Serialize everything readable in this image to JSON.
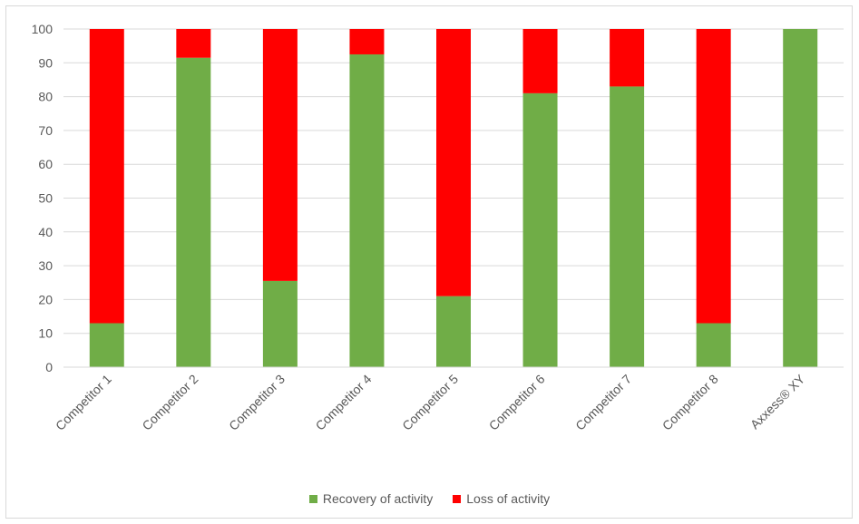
{
  "chart_data": {
    "type": "bar",
    "stacked": true,
    "categories": [
      "Competitor 1",
      "Competitor 2",
      "Competitor 3",
      "Competitor 4",
      "Competitor 5",
      "Competitor 6",
      "Competitor 7",
      "Competitor 8",
      "Axxess® XY"
    ],
    "series": [
      {
        "name": "Recovery of activity",
        "color": "#70ad47",
        "values": [
          13,
          91.5,
          25.5,
          92.5,
          21,
          81,
          83,
          13,
          100
        ]
      },
      {
        "name": "Loss of activity",
        "color": "#ff0000",
        "values": [
          87,
          8.5,
          74.5,
          7.5,
          79,
          19,
          17,
          87,
          0
        ]
      }
    ],
    "title": "",
    "xlabel": "",
    "ylabel": "",
    "ylim": [
      0,
      100
    ],
    "yticks": [
      0,
      10,
      20,
      30,
      40,
      50,
      60,
      70,
      80,
      90,
      100
    ],
    "grid": true,
    "legend_position": "bottom"
  }
}
